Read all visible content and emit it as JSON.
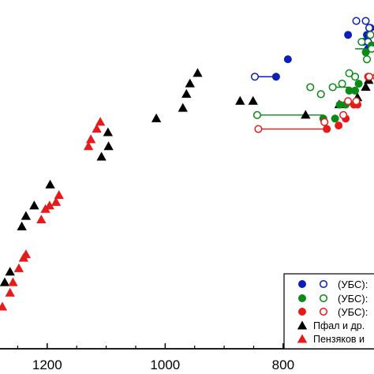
{
  "chart_data": {
    "type": "scatter",
    "title": "",
    "xlabel": "",
    "ylabel": "",
    "x_reversed": true,
    "xlim": [
      1280,
      646
    ],
    "ylim": [
      0,
      100
    ],
    "xticks": [
      1200,
      1000,
      800
    ],
    "grid": false,
    "legend_placement": "bottom-right",
    "colors": {
      "blue": "#0a1fb8",
      "green": "#0b8a16",
      "red": "#e81919",
      "black": "#000000",
      "axis": "#000000"
    },
    "legend": [
      {
        "marker": "circle-pair",
        "color": "blue",
        "label": "(УБС):"
      },
      {
        "marker": "circle-pair",
        "color": "green",
        "label": "(УБС):"
      },
      {
        "marker": "circle-pair",
        "color": "red",
        "label": "(УБС):"
      },
      {
        "marker": "triangle",
        "color": "black",
        "label": "Пфал и др."
      },
      {
        "marker": "triangle",
        "color": "red",
        "label": "Пензяков и"
      }
    ],
    "series": [
      {
        "marker": "triangle",
        "color": "black",
        "filled": true,
        "points": [
          [
            1272,
            19
          ],
          [
            1263,
            22
          ],
          [
            1243,
            35
          ],
          [
            1236,
            38
          ],
          [
            1222,
            41
          ],
          [
            1195,
            47
          ],
          [
            1108,
            55
          ],
          [
            1096,
            58
          ],
          [
            1097,
            62
          ],
          [
            1015,
            66
          ],
          [
            970,
            69
          ],
          [
            964,
            73
          ],
          [
            958,
            76
          ],
          [
            945,
            79
          ],
          [
            873,
            71
          ],
          [
            851,
            71
          ],
          [
            762,
            67
          ],
          [
            705,
            70
          ],
          [
            674,
            72
          ],
          [
            660,
            75
          ],
          [
            655,
            77
          ]
        ]
      },
      {
        "marker": "triangle",
        "color": "red",
        "filled": true,
        "points": [
          [
            1276,
            12
          ],
          [
            1263,
            16
          ],
          [
            1258,
            19
          ],
          [
            1248,
            23
          ],
          [
            1240,
            26
          ],
          [
            1236,
            27
          ],
          [
            1210,
            37
          ],
          [
            1203,
            40
          ],
          [
            1196,
            41
          ],
          [
            1185,
            42
          ],
          [
            1180,
            44
          ],
          [
            1130,
            58
          ],
          [
            1126,
            60
          ],
          [
            1116,
            63
          ],
          [
            1110,
            65
          ]
        ]
      },
      {
        "marker": "circle",
        "color": "blue",
        "filled": true,
        "points": [
          [
            792,
            83
          ],
          [
            812,
            78
          ],
          [
            690,
            90
          ],
          [
            664,
            88
          ],
          [
            658,
            90
          ],
          [
            652,
            92
          ],
          [
            656,
            86
          ]
        ]
      },
      {
        "marker": "circle",
        "color": "blue",
        "filled": false,
        "points": [
          [
            848,
            78
          ],
          [
            676,
            94
          ],
          [
            660,
            94
          ],
          [
            654,
            92
          ],
          [
            656,
            88
          ]
        ]
      },
      {
        "marker": "circle",
        "color": "green",
        "filled": true,
        "points": [
          [
            732,
            66
          ],
          [
            712,
            66
          ],
          [
            704,
            70
          ],
          [
            694,
            70
          ],
          [
            688,
            74
          ],
          [
            678,
            74
          ],
          [
            672,
            76
          ],
          [
            660,
            85
          ],
          [
            650,
            87
          ]
        ]
      },
      {
        "marker": "circle",
        "color": "green",
        "filled": false,
        "points": [
          [
            844,
            67
          ],
          [
            754,
            75
          ],
          [
            736,
            73
          ],
          [
            716,
            75
          ],
          [
            700,
            76
          ],
          [
            688,
            79
          ],
          [
            678,
            78
          ],
          [
            658,
            83
          ],
          [
            650,
            86
          ],
          [
            667,
            88
          ],
          [
            652,
            90
          ]
        ]
      },
      {
        "marker": "circle",
        "color": "red",
        "filled": true,
        "points": [
          [
            726,
            63
          ],
          [
            706,
            64
          ],
          [
            694,
            66
          ],
          [
            680,
            70
          ],
          [
            674,
            70
          ],
          [
            656,
            78
          ]
        ]
      },
      {
        "marker": "circle",
        "color": "red",
        "filled": false,
        "points": [
          [
            842,
            63
          ],
          [
            730,
            65
          ],
          [
            698,
            67
          ],
          [
            690,
            71
          ],
          [
            676,
            71
          ],
          [
            654,
            78
          ],
          [
            642,
            78
          ]
        ]
      }
    ],
    "connectors": [
      {
        "color": "blue",
        "from": [
          848,
          78
        ],
        "to": [
          812,
          78
        ]
      },
      {
        "color": "green",
        "from": [
          844,
          67
        ],
        "to": [
          732,
          67
        ]
      },
      {
        "color": "green",
        "from": [
          716,
          75
        ],
        "to": [
          688,
          75
        ]
      },
      {
        "color": "green",
        "from": [
          678,
          86
        ],
        "to": [
          650,
          86
        ]
      },
      {
        "color": "red",
        "from": [
          842,
          63
        ],
        "to": [
          726,
          63
        ]
      },
      {
        "color": "red",
        "from": [
          690,
          70
        ],
        "to": [
          674,
          70
        ]
      }
    ]
  }
}
